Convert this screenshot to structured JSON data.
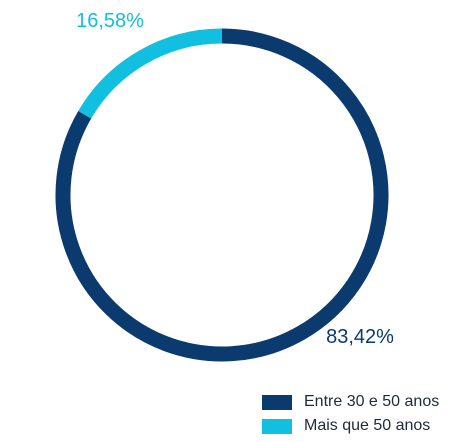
{
  "chart_data": {
    "type": "pie",
    "style": "donut",
    "title": "",
    "categories": [
      "Entre 30 e 50 anos",
      "Mais que 50 anos"
    ],
    "values": [
      83.42,
      16.58
    ],
    "value_labels": [
      "83,42%",
      "16,58%"
    ],
    "colors": [
      "#0b3a6e",
      "#11bfe0"
    ],
    "legend": {
      "placement": "bottom-right",
      "items": [
        "Entre 30 e 50 anos",
        "Mais que 50 anos"
      ]
    }
  }
}
